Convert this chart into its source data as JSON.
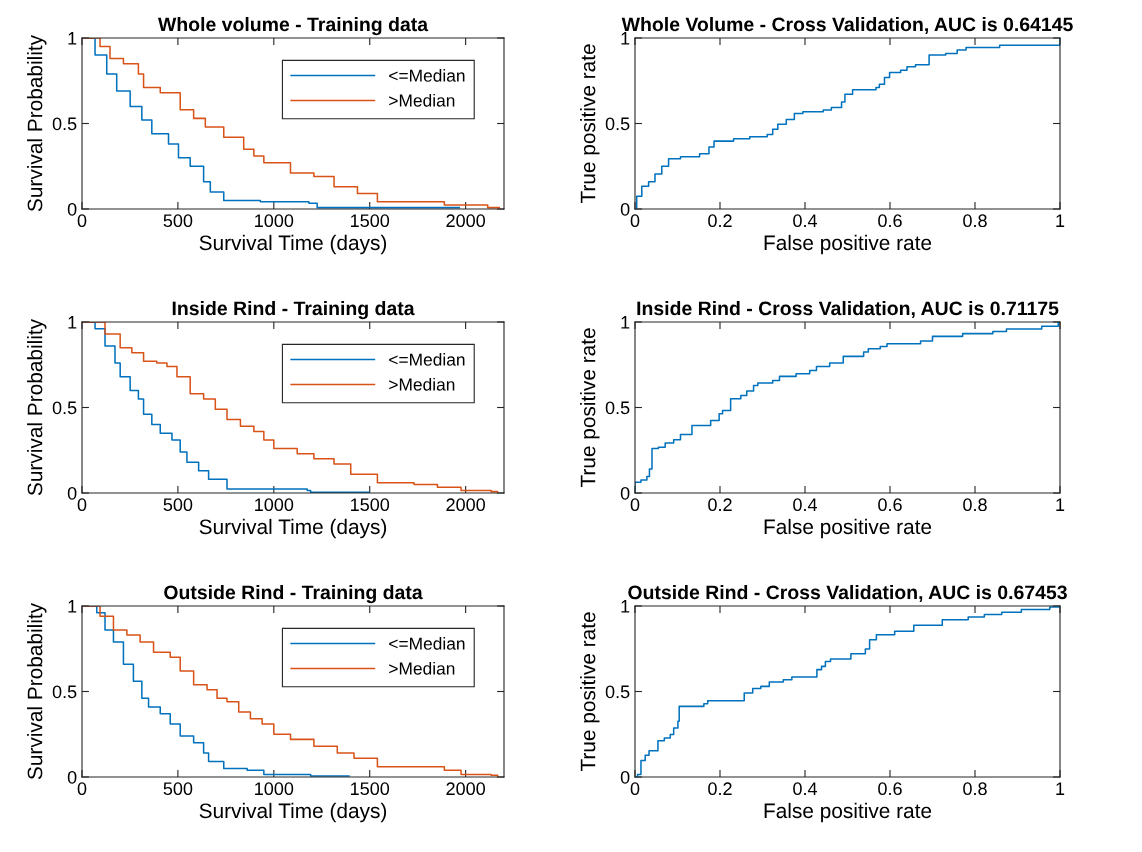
{
  "chart_data": [
    {
      "type": "step",
      "title": "Whole volume - Training data",
      "xlabel": "Survival Time (days)",
      "ylabel": "Survival Probability",
      "xlim": [
        0,
        2200
      ],
      "ylim": [
        0,
        1
      ],
      "xticks": [
        0,
        500,
        1000,
        1500,
        2000
      ],
      "yticks": [
        0,
        0.5,
        1
      ],
      "legend": "top right",
      "series": [
        {
          "name": "<=Median",
          "color": "#0072bd",
          "x": [
            0,
            68,
            129,
            181,
            251,
            312,
            364,
            451,
            503,
            564,
            634,
            669,
            739,
            930,
            1183,
            1226,
            1967
          ],
          "values": [
            1,
            0.9,
            0.79,
            0.69,
            0.6,
            0.52,
            0.44,
            0.38,
            0.3,
            0.25,
            0.16,
            0.1,
            0.05,
            0.043,
            0.033,
            0.008,
            0.008
          ]
        },
        {
          "name": ">Median",
          "color": "#d95319",
          "x": [
            0,
            59,
            94,
            146,
            216,
            294,
            321,
            408,
            512,
            582,
            643,
            739,
            843,
            896,
            948,
            1087,
            1209,
            1314,
            1436,
            1540,
            1889,
            2115,
            2176
          ],
          "values": [
            1,
            1,
            0.95,
            0.88,
            0.85,
            0.79,
            0.71,
            0.68,
            0.58,
            0.53,
            0.48,
            0.42,
            0.35,
            0.31,
            0.27,
            0.21,
            0.19,
            0.13,
            0.09,
            0.043,
            0.023,
            0.008,
            0
          ]
        }
      ]
    },
    {
      "type": "step",
      "title": "Whole Volume - Cross Validation, AUC is 0.64145",
      "xlabel": "False positive rate",
      "ylabel": "True positive rate",
      "xlim": [
        0,
        1
      ],
      "ylim": [
        0,
        1
      ],
      "xticks": [
        0,
        0.2,
        0.4,
        0.6,
        0.8,
        1
      ],
      "yticks": [
        0,
        0.5,
        1
      ],
      "series": [
        {
          "color": "#0072bd",
          "x": [
            0,
            0.004,
            0.016,
            0.032,
            0.047,
            0.063,
            0.079,
            0.107,
            0.152,
            0.174,
            0.186,
            0.232,
            0.27,
            0.311,
            0.324,
            0.336,
            0.356,
            0.375,
            0.395,
            0.443,
            0.462,
            0.486,
            0.494,
            0.512,
            0.567,
            0.575,
            0.587,
            0.599,
            0.625,
            0.64,
            0.66,
            0.692,
            0.731,
            0.758,
            0.779,
            0.858,
            1
          ],
          "values": [
            0,
            0.074,
            0.133,
            0.16,
            0.205,
            0.25,
            0.294,
            0.305,
            0.323,
            0.362,
            0.397,
            0.411,
            0.423,
            0.436,
            0.466,
            0.495,
            0.524,
            0.558,
            0.569,
            0.579,
            0.593,
            0.626,
            0.671,
            0.697,
            0.71,
            0.73,
            0.769,
            0.798,
            0.812,
            0.832,
            0.843,
            0.9,
            0.91,
            0.93,
            0.945,
            0.958,
            1
          ]
        }
      ]
    },
    {
      "type": "step",
      "title": "Inside Rind - Training data",
      "xlabel": "Survival Time (days)",
      "ylabel": "Survival Probability",
      "xlim": [
        0,
        2200
      ],
      "ylim": [
        0,
        1
      ],
      "xticks": [
        0,
        500,
        1000,
        1500,
        2000
      ],
      "yticks": [
        0,
        0.5,
        1
      ],
      "legend": "top right",
      "series": [
        {
          "name": "<=Median",
          "color": "#0072bd",
          "x": [
            0,
            68,
            120,
            172,
            199,
            251,
            294,
            321,
            364,
            408,
            469,
            512,
            547,
            608,
            660,
            756,
            1174,
            1192,
            1496
          ],
          "values": [
            1,
            0.96,
            0.86,
            0.76,
            0.68,
            0.6,
            0.55,
            0.46,
            0.4,
            0.35,
            0.31,
            0.24,
            0.18,
            0.13,
            0.08,
            0.023,
            0.014,
            0.004,
            0.004
          ]
        },
        {
          "name": ">Median",
          "color": "#d95319",
          "x": [
            0,
            33,
            120,
            199,
            260,
            321,
            390,
            443,
            495,
            564,
            634,
            695,
            756,
            826,
            896,
            948,
            1000,
            1122,
            1209,
            1314,
            1401,
            1540,
            1731,
            1853,
            1976,
            2133,
            2167
          ],
          "values": [
            1,
            1,
            0.93,
            0.85,
            0.82,
            0.77,
            0.76,
            0.74,
            0.68,
            0.58,
            0.55,
            0.49,
            0.43,
            0.39,
            0.36,
            0.31,
            0.26,
            0.23,
            0.2,
            0.17,
            0.11,
            0.06,
            0.05,
            0.033,
            0.014,
            0.008,
            0
          ]
        }
      ]
    },
    {
      "type": "step",
      "title": "Inside Rind - Cross Validation, AUC is 0.71175",
      "xlabel": "False positive rate",
      "ylabel": "True positive rate",
      "xlim": [
        0,
        1
      ],
      "ylim": [
        0,
        1
      ],
      "xticks": [
        0,
        0.2,
        0.4,
        0.6,
        0.8,
        1
      ],
      "yticks": [
        0,
        0.5,
        1
      ],
      "series": [
        {
          "color": "#0072bd",
          "x": [
            0,
            0,
            0.014,
            0.028,
            0.034,
            0.04,
            0.055,
            0.071,
            0.091,
            0.107,
            0.134,
            0.178,
            0.198,
            0.206,
            0.225,
            0.249,
            0.263,
            0.279,
            0.289,
            0.324,
            0.34,
            0.379,
            0.411,
            0.427,
            0.458,
            0.49,
            0.538,
            0.549,
            0.577,
            0.593,
            0.672,
            0.7,
            0.771,
            0.842,
            0.874,
            0.957,
            0.996,
            1
          ],
          "values": [
            0,
            0.063,
            0.076,
            0.096,
            0.141,
            0.26,
            0.268,
            0.293,
            0.311,
            0.342,
            0.395,
            0.424,
            0.463,
            0.482,
            0.551,
            0.57,
            0.596,
            0.629,
            0.643,
            0.658,
            0.682,
            0.697,
            0.717,
            0.74,
            0.76,
            0.799,
            0.824,
            0.844,
            0.857,
            0.873,
            0.889,
            0.916,
            0.932,
            0.945,
            0.959,
            0.975,
            1,
            1
          ]
        }
      ]
    },
    {
      "type": "step",
      "title": "Outside Rind - Training data",
      "xlabel": "Survival Time (days)",
      "ylabel": "Survival Probability",
      "xlim": [
        0,
        2200
      ],
      "ylim": [
        0,
        1
      ],
      "xticks": [
        0,
        500,
        1000,
        1500,
        2000
      ],
      "yticks": [
        0,
        0.5,
        1
      ],
      "legend": "top right",
      "series": [
        {
          "name": "<=Median",
          "color": "#0072bd",
          "x": [
            0,
            16,
            77,
            120,
            164,
            216,
            268,
            312,
            347,
            408,
            460,
            512,
            582,
            634,
            660,
            739,
            861,
            948,
            1192,
            1392
          ],
          "values": [
            1,
            1,
            0.96,
            0.86,
            0.79,
            0.66,
            0.56,
            0.46,
            0.41,
            0.37,
            0.31,
            0.24,
            0.2,
            0.14,
            0.09,
            0.05,
            0.04,
            0.014,
            0.006,
            0.006
          ]
        },
        {
          "name": ">Median",
          "color": "#d95319",
          "x": [
            0,
            24,
            94,
            164,
            234,
            303,
            373,
            460,
            512,
            582,
            652,
            704,
            756,
            817,
            878,
            939,
            1000,
            1087,
            1209,
            1331,
            1418,
            1540,
            1889,
            1976,
            2133,
            2167
          ],
          "values": [
            1,
            1,
            0.94,
            0.86,
            0.83,
            0.79,
            0.73,
            0.7,
            0.62,
            0.54,
            0.51,
            0.46,
            0.44,
            0.38,
            0.34,
            0.31,
            0.25,
            0.22,
            0.18,
            0.14,
            0.11,
            0.06,
            0.04,
            0.014,
            0.01,
            0
          ]
        }
      ]
    },
    {
      "type": "step",
      "title": "Outside Rind - Cross Validation, AUC is 0.67453",
      "xlabel": "False positive rate",
      "ylabel": "True positive rate",
      "xlim": [
        0,
        1
      ],
      "ylim": [
        0,
        1
      ],
      "xticks": [
        0,
        0.2,
        0.4,
        0.6,
        0.8,
        1
      ],
      "yticks": [
        0,
        0.5,
        1
      ],
      "series": [
        {
          "color": "#0072bd",
          "x": [
            0,
            0.006,
            0.014,
            0.024,
            0.033,
            0.054,
            0.069,
            0.083,
            0.091,
            0.101,
            0.104,
            0.162,
            0.171,
            0.257,
            0.277,
            0.296,
            0.316,
            0.349,
            0.369,
            0.428,
            0.439,
            0.448,
            0.46,
            0.508,
            0.542,
            0.552,
            0.568,
            0.611,
            0.656,
            0.723,
            0.784,
            0.822,
            0.863,
            0.909,
            0.976,
            1
          ],
          "values": [
            0,
            0.014,
            0.096,
            0.127,
            0.154,
            0.212,
            0.228,
            0.248,
            0.287,
            0.326,
            0.413,
            0.429,
            0.446,
            0.491,
            0.517,
            0.53,
            0.556,
            0.569,
            0.585,
            0.628,
            0.647,
            0.676,
            0.69,
            0.721,
            0.749,
            0.803,
            0.832,
            0.852,
            0.887,
            0.92,
            0.936,
            0.95,
            0.963,
            0.979,
            0.994,
            1
          ]
        }
      ]
    }
  ]
}
